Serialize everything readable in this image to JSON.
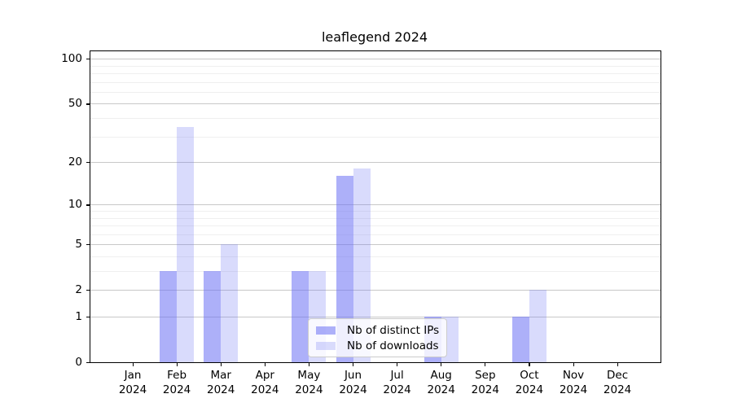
{
  "title": "leaflegend 2024",
  "chart_data": {
    "type": "bar",
    "title": "leaflegend 2024",
    "categories": [
      "Jan",
      "Feb",
      "Mar",
      "Apr",
      "May",
      "Jun",
      "Jul",
      "Aug",
      "Sep",
      "Oct",
      "Nov",
      "Dec"
    ],
    "x_year": "2024",
    "series": [
      {
        "name": "Nb of distinct IPs",
        "color": "rgba(105,112,244,0.55)",
        "values": [
          0,
          3,
          3,
          0,
          3,
          16,
          0,
          1,
          0,
          1,
          0,
          0
        ]
      },
      {
        "name": "Nb of downloads",
        "color": "rgba(105,112,244,0.25)",
        "values": [
          0,
          35,
          5,
          0,
          3,
          18,
          0,
          1,
          0,
          2,
          0,
          0
        ]
      }
    ],
    "xlabel": "",
    "ylabel": "",
    "yscale": "log1p",
    "ylim": [
      0,
      112
    ],
    "yticks": [
      0,
      1,
      2,
      5,
      10,
      20,
      50,
      100
    ],
    "minor_gridlines": [
      3,
      4,
      6,
      7,
      8,
      9,
      30,
      40,
      60,
      70,
      80,
      90
    ],
    "grid": "horizontal",
    "major_grid_color": "#c8c8c8",
    "minor_grid_color": "#efefef",
    "legend_position": "lower center"
  }
}
